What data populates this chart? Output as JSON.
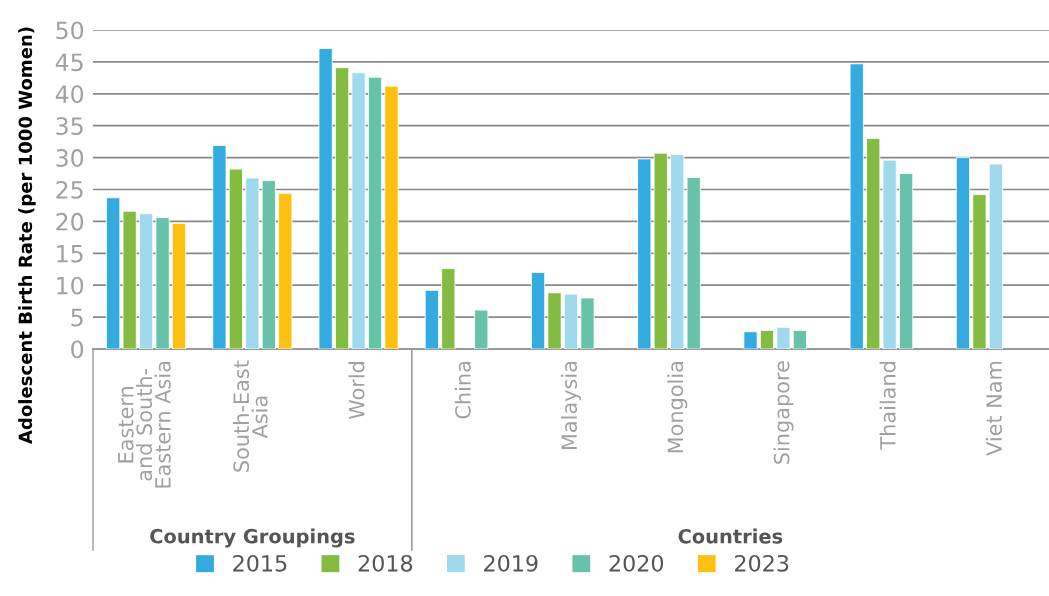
{
  "chart_data": {
    "type": "bar",
    "ylabel": "Adolescent Birth Rate (per 1000 Women)",
    "categories": [
      "Eastern\nand South-\nEastern Asia",
      "South-East\nAsia",
      "World",
      "China",
      "Malaysia",
      "Mongolia",
      "Singapore",
      "Thailand",
      "Viet Nam"
    ],
    "series": [
      {
        "name": "2015",
        "color": "#33aae0",
        "values": [
          23.7,
          31.9,
          47.1,
          9.2,
          12.0,
          29.8,
          2.7,
          44.7,
          30.0
        ]
      },
      {
        "name": "2018",
        "color": "#84bc41",
        "values": [
          21.6,
          28.2,
          44.1,
          12.6,
          8.8,
          30.7,
          2.9,
          33.0,
          24.2
        ]
      },
      {
        "name": "2019",
        "color": "#9fdaec",
        "values": [
          21.2,
          26.8,
          43.3,
          null,
          8.6,
          30.5,
          3.4,
          29.6,
          29.0
        ]
      },
      {
        "name": "2020",
        "color": "#66c3aa",
        "values": [
          20.6,
          26.4,
          42.6,
          6.1,
          8.0,
          26.9,
          2.9,
          27.5,
          null
        ]
      },
      {
        "name": "2023",
        "color": "#fdc010",
        "values": [
          19.7,
          24.4,
          41.2,
          null,
          null,
          null,
          null,
          null,
          null
        ]
      }
    ],
    "ylim": [
      0,
      50
    ],
    "yticks": [
      0,
      5,
      10,
      15,
      20,
      25,
      30,
      35,
      40,
      45,
      50
    ],
    "grid": "y",
    "legend": "bottom",
    "annotations": [
      "Country Groupings",
      "Countries"
    ]
  }
}
